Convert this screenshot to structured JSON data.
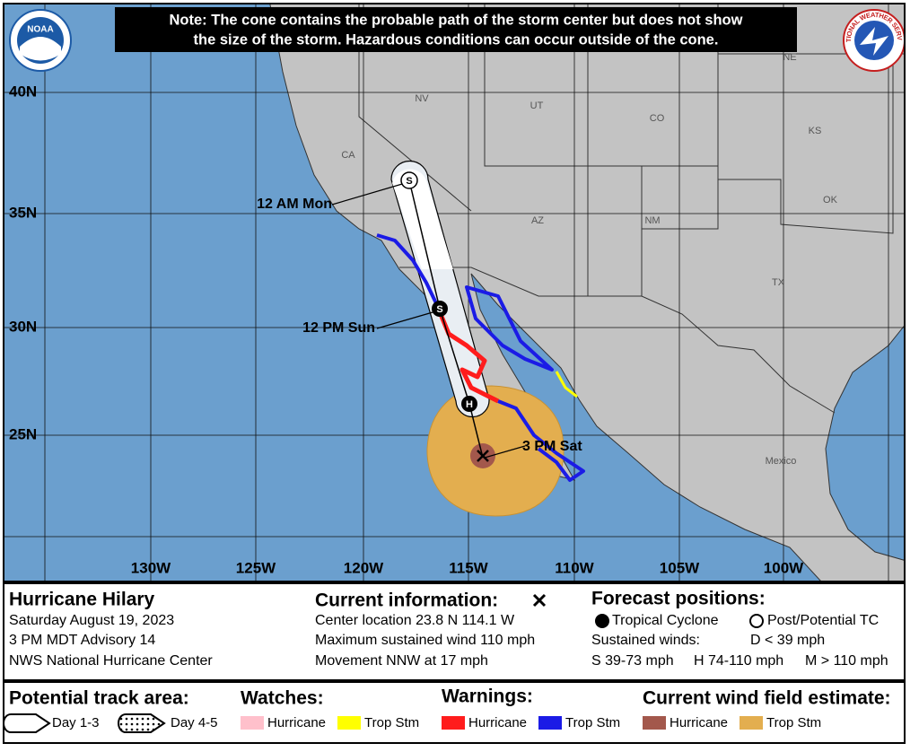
{
  "header": {
    "note_line1": "Note: The cone contains the probable path of the storm center but does not show",
    "note_line2": "the size of the storm. Hazardous conditions can occur outside of the cone."
  },
  "logos": {
    "noaa": "NOAA",
    "nws": "NATIONAL WEATHER SERVICE"
  },
  "map": {
    "states": [
      "NE",
      "NV",
      "UT",
      "CO",
      "KS",
      "CA",
      "AZ",
      "NM",
      "OK",
      "TX",
      "Mexico"
    ],
    "latitudes": [
      "40N",
      "35N",
      "30N",
      "25N"
    ],
    "longitudes": [
      "130W",
      "125W",
      "120W",
      "115W",
      "110W",
      "105W",
      "100W"
    ],
    "track_labels": [
      "12 AM Mon",
      "12 PM Sun",
      "3 PM Sat"
    ],
    "positions": [
      "S",
      "S",
      "H"
    ]
  },
  "info": {
    "storm": {
      "name": "Hurricane Hilary",
      "lines": [
        "Saturday August 19, 2023",
        "3 PM MDT Advisory 14",
        "NWS National Hurricane Center"
      ]
    },
    "current": {
      "title": "Current information:",
      "lines": [
        "Center location 23.8 N 114.1 W",
        "Maximum sustained wind 110 mph",
        "Movement NNW at 17 mph"
      ]
    },
    "forecast": {
      "title": "Forecast positions:",
      "tropical": "Tropical Cyclone",
      "post": "Post/Potential TC",
      "winds_label": "Sustained winds:",
      "d": "D < 39 mph",
      "s": "S 39-73 mph",
      "h": "H 74-110 mph",
      "m": "M > 110 mph"
    }
  },
  "legend": {
    "track_title": "Potential track area:",
    "day13": "Day 1-3",
    "day45": "Day 4-5",
    "watches": "Watches:",
    "watch_items": [
      "Hurricane",
      "Trop Stm"
    ],
    "warnings": "Warnings:",
    "warning_items": [
      "Hurricane",
      "Trop Stm"
    ],
    "wind": "Current wind field estimate:",
    "wind_items": [
      "Hurricane",
      "Trop Stm"
    ]
  }
}
